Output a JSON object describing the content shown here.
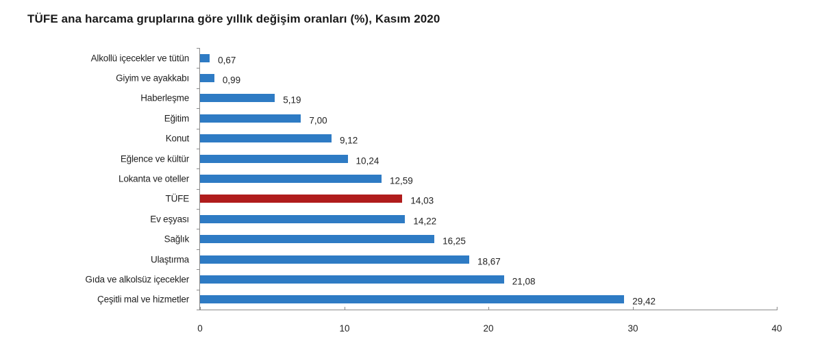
{
  "title": "TÜFE ana harcama gruplarına göre yıllık değişim oranları (%), Kasım 2020",
  "colors": {
    "default_bar": "#2e7bc4",
    "highlight_bar": "#b01c1c",
    "axis": "#8a8a8a",
    "text": "#222222"
  },
  "chart_data": {
    "type": "bar",
    "orientation": "horizontal",
    "title": "TÜFE ana harcama gruplarına göre yıllık değişim oranları (%), Kasım 2020",
    "xlabel": "",
    "ylabel": "",
    "xlim": [
      0,
      40
    ],
    "x_ticks": [
      0,
      10,
      20,
      30,
      40
    ],
    "grid": false,
    "legend": null,
    "categories": [
      "Alkollü içecekler ve tütün",
      "Giyim ve ayakkabı",
      "Haberleşme",
      "Eğitim",
      "Konut",
      "Eğlence ve kültür",
      "Lokanta ve oteller",
      "TÜFE",
      "Ev eşyası",
      "Sağlık",
      "Ulaştırma",
      "Gıda ve alkolsüz içecekler",
      "Çeşitli mal ve hizmetler"
    ],
    "values": [
      0.67,
      0.99,
      5.19,
      7.0,
      9.12,
      10.24,
      12.59,
      14.03,
      14.22,
      16.25,
      18.67,
      21.08,
      29.42
    ],
    "value_labels": [
      "0,67",
      "0,99",
      "5,19",
      "7,00",
      "9,12",
      "10,24",
      "12,59",
      "14,03",
      "14,22",
      "16,25",
      "18,67",
      "21,08",
      "29,42"
    ],
    "highlight": "TÜFE"
  }
}
